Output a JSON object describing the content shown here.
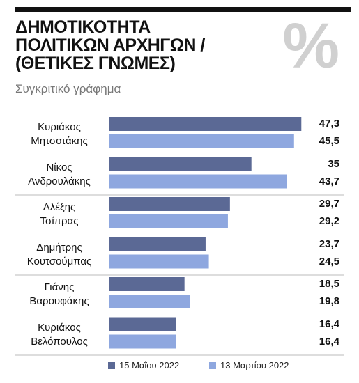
{
  "chart_data": {
    "type": "bar",
    "orientation": "horizontal",
    "title": "ΔΗΜΟΤΙΚΟΤΗΤΑ\nΠΟΛΙΤΙΚΩΝ ΑΡΧΗΓΩΝ /\n(ΘΕΤΙΚΕΣ ΓΝΩΜΕΣ)",
    "subtitle": "Συγκριτικό γράφημα",
    "watermark": "%",
    "categories": [
      "Κυριάκος\nΜητσοτάκης",
      "Νίκος\nΑνδρουλάκης",
      "Αλέξης\nΤσίπρας",
      "Δημήτρης\nΚουτσούμπας",
      "Γιάνης\nΒαρουφάκης",
      "Κυριάκος\nΒελόπουλος"
    ],
    "series": [
      {
        "name": "15 Μαΐου 2022",
        "color": "#5b6995",
        "values": [
          47.3,
          35,
          29.7,
          23.7,
          18.5,
          16.4
        ],
        "value_labels": [
          "47,3",
          "35",
          "29,7",
          "23,7",
          "18,5",
          "16,4"
        ]
      },
      {
        "name": "13 Μαρτίου 2022",
        "color": "#8ea7df",
        "values": [
          45.5,
          43.7,
          29.2,
          24.5,
          19.8,
          16.4
        ],
        "value_labels": [
          "45,5",
          "43,7",
          "29,2",
          "24,5",
          "19,8",
          "16,4"
        ]
      }
    ],
    "xlim": [
      0,
      50
    ]
  }
}
